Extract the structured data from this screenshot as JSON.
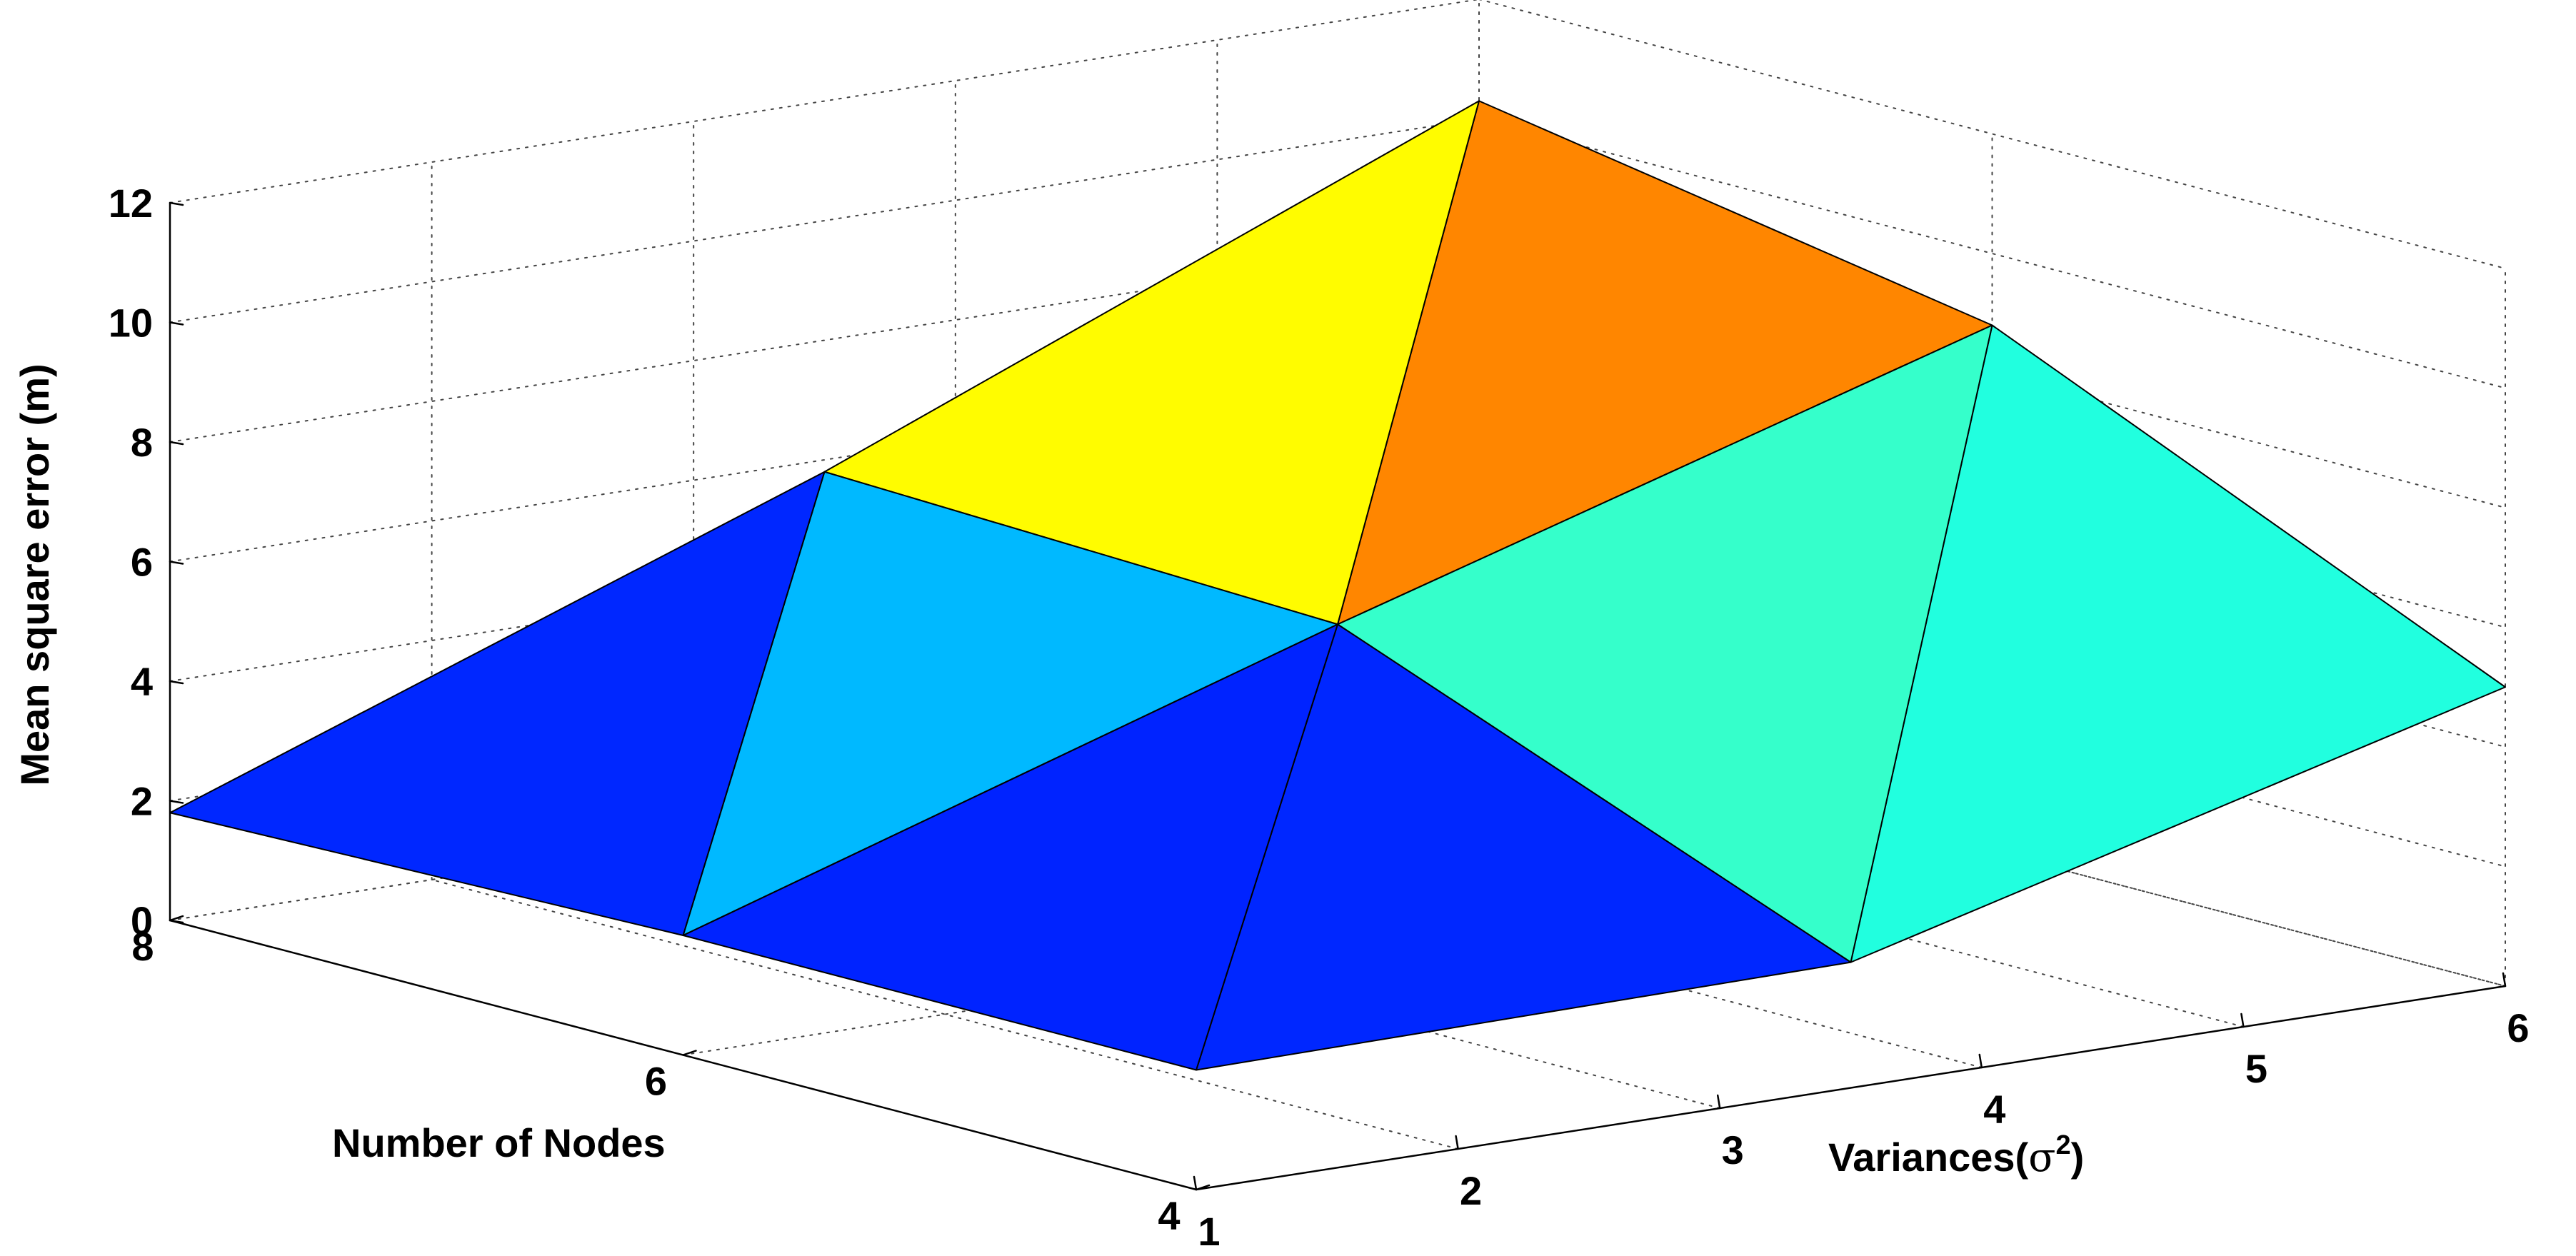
{
  "chart_data": {
    "type": "surface3d",
    "xlabel": "Variances(σ²)",
    "xlabel_parts": {
      "base": "Variances(",
      "sigma": "σ",
      "power": "2",
      "close": ")"
    },
    "ylabel": "Number of Nodes",
    "zlabel": "Mean square error (m)",
    "x_ticks": [
      "1",
      "2",
      "3",
      "4",
      "5",
      "6"
    ],
    "y_ticks": [
      "4",
      "6",
      "8"
    ],
    "z_ticks": [
      "0",
      "2",
      "4",
      "6",
      "8",
      "10",
      "12"
    ],
    "xlim": [
      1,
      6
    ],
    "ylim": [
      4,
      8
    ],
    "zlim": [
      0,
      12
    ],
    "grid": true,
    "x": [
      1,
      3.5,
      6
    ],
    "y": [
      4,
      6,
      8
    ],
    "z": [
      [
        2.0,
        2.1,
        5.0
      ],
      [
        2.0,
        5.5,
        8.8
      ],
      [
        1.8,
        5.8,
        10.3
      ]
    ],
    "colormap": [
      "#00008f",
      "#0000ff",
      "#0080ff",
      "#00ffff",
      "#80ff80",
      "#ffff00",
      "#ff8000",
      "#ff0000",
      "#800000"
    ]
  }
}
